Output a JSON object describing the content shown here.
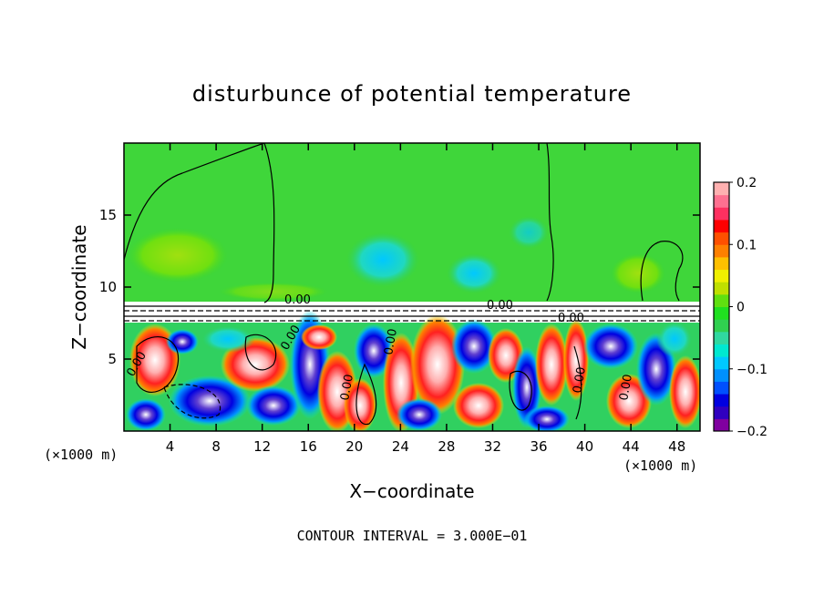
{
  "chart_data": {
    "type": "heatmap",
    "title": "disturbunce of potential temperature",
    "xlabel": "X−coordinate",
    "ylabel": "Z−coordinate",
    "x_unit_left": "(×1000 m)",
    "x_unit_right": "(×1000 m)",
    "xlim": [
      0,
      50
    ],
    "ylim": [
      0,
      20
    ],
    "x_ticks": [
      4,
      8,
      12,
      16,
      20,
      24,
      28,
      32,
      36,
      40,
      44,
      48
    ],
    "y_ticks": [
      5,
      10,
      15
    ],
    "colorbar": {
      "min": -0.2,
      "max": 0.2,
      "ticks": [
        {
          "value": 0.2,
          "label": "0.2"
        },
        {
          "value": 0.1,
          "label": "0.1"
        },
        {
          "value": 0,
          "label": "0"
        },
        {
          "value": -0.1,
          "label": "−0.1"
        },
        {
          "value": -0.2,
          "label": "−0.2"
        }
      ],
      "colors": [
        "#8000a0",
        "#3000c0",
        "#0000e0",
        "#0050ff",
        "#0090ff",
        "#00c8ff",
        "#00e8d0",
        "#30d8a0",
        "#30d050",
        "#20e020",
        "#60e010",
        "#c0e000",
        "#f0f000",
        "#ffc000",
        "#ff8000",
        "#ff5000",
        "#ff0000",
        "#ff3060",
        "#ff7090",
        "#ffb0b0"
      ]
    },
    "contour_labels": [
      "0.00"
    ],
    "footer": "CONTOUR INTERVAL = 3.000E−01"
  }
}
